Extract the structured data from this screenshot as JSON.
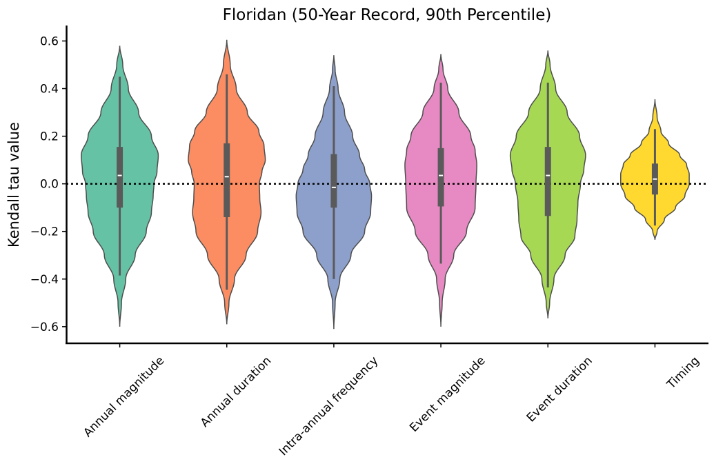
{
  "chart_data": {
    "type": "violin",
    "title": "Floridan (50-Year Record, 90th Percentile)",
    "xlabel": "",
    "ylabel": "Kendall tau value",
    "ylim": [
      -0.67,
      0.665
    ],
    "yticks": [
      -0.6,
      -0.4,
      -0.2,
      0.0,
      0.2,
      0.4,
      0.6
    ],
    "ytick_labels": [
      "−0.6",
      "−0.4",
      "−0.2",
      "0.0",
      "0.2",
      "0.4",
      "0.6"
    ],
    "reference_line": {
      "y": 0.0,
      "style": "dotted"
    },
    "grid": false,
    "categories": [
      "Annual magnitude",
      "Annual duration",
      "Intra-annual frequency",
      "Event magnitude",
      "Event duration",
      "Timing"
    ],
    "violins": [
      {
        "category": "Annual magnitude",
        "color": "#66c2a5",
        "min": -0.6,
        "max": 0.58,
        "whisker_low": -0.385,
        "whisker_high": 0.45,
        "q1": -0.1,
        "median": 0.035,
        "q3": 0.155,
        "density_y": [
          -0.6,
          -0.5,
          -0.4,
          -0.3,
          -0.2,
          -0.12,
          -0.05,
          0.0,
          0.05,
          0.12,
          0.2,
          0.3,
          0.4,
          0.5,
          0.58
        ],
        "density_w": [
          0.0,
          0.04,
          0.14,
          0.36,
          0.62,
          0.74,
          0.78,
          0.8,
          0.87,
          0.9,
          0.74,
          0.44,
          0.2,
          0.07,
          0.0
        ]
      },
      {
        "category": "Annual duration",
        "color": "#fc8d62",
        "min": -0.59,
        "max": 0.605,
        "whisker_low": -0.445,
        "whisker_high": 0.46,
        "q1": -0.14,
        "median": 0.03,
        "q3": 0.17,
        "density_y": [
          -0.59,
          -0.5,
          -0.4,
          -0.3,
          -0.2,
          -0.12,
          -0.06,
          0.0,
          0.05,
          0.1,
          0.16,
          0.22,
          0.3,
          0.4,
          0.5,
          0.605
        ],
        "density_w": [
          0.0,
          0.05,
          0.18,
          0.45,
          0.72,
          0.8,
          0.77,
          0.76,
          0.82,
          0.9,
          0.87,
          0.75,
          0.48,
          0.22,
          0.08,
          0.0
        ]
      },
      {
        "category": "Intra-annual frequency",
        "color": "#8da0cb",
        "min": -0.61,
        "max": 0.54,
        "whisker_low": -0.4,
        "whisker_high": 0.41,
        "q1": -0.1,
        "median": -0.015,
        "q3": 0.125,
        "density_y": [
          -0.61,
          -0.5,
          -0.4,
          -0.3,
          -0.2,
          -0.12,
          -0.05,
          0.0,
          0.06,
          0.12,
          0.2,
          0.3,
          0.4,
          0.48,
          0.54
        ],
        "density_w": [
          0.0,
          0.03,
          0.14,
          0.4,
          0.72,
          0.86,
          0.88,
          0.84,
          0.72,
          0.6,
          0.44,
          0.25,
          0.1,
          0.03,
          0.0
        ]
      },
      {
        "category": "Event magnitude",
        "color": "#e78ac3",
        "min": -0.6,
        "max": 0.545,
        "whisker_low": -0.335,
        "whisker_high": 0.425,
        "q1": -0.095,
        "median": 0.035,
        "q3": 0.15,
        "density_y": [
          -0.6,
          -0.5,
          -0.4,
          -0.3,
          -0.2,
          -0.1,
          0.0,
          0.08,
          0.14,
          0.2,
          0.3,
          0.4,
          0.48,
          0.545
        ],
        "density_w": [
          0.0,
          0.03,
          0.1,
          0.3,
          0.6,
          0.8,
          0.82,
          0.84,
          0.8,
          0.7,
          0.42,
          0.16,
          0.05,
          0.0
        ]
      },
      {
        "category": "Event duration",
        "color": "#a6d854",
        "min": -0.565,
        "max": 0.56,
        "whisker_low": -0.435,
        "whisker_high": 0.425,
        "q1": -0.135,
        "median": 0.035,
        "q3": 0.155,
        "density_y": [
          -0.565,
          -0.5,
          -0.4,
          -0.3,
          -0.22,
          -0.15,
          -0.08,
          0.0,
          0.06,
          0.12,
          0.2,
          0.3,
          0.4,
          0.5,
          0.56
        ],
        "density_w": [
          0.0,
          0.04,
          0.14,
          0.4,
          0.63,
          0.68,
          0.7,
          0.76,
          0.84,
          0.88,
          0.74,
          0.45,
          0.18,
          0.05,
          0.0
        ]
      },
      {
        "category": "Timing",
        "color": "#ffd92f",
        "min": -0.235,
        "max": 0.355,
        "whisker_low": -0.175,
        "whisker_high": 0.23,
        "q1": -0.045,
        "median": 0.02,
        "q3": 0.085,
        "density_y": [
          -0.235,
          -0.2,
          -0.15,
          -0.1,
          -0.05,
          0.0,
          0.04,
          0.08,
          0.12,
          0.17,
          0.22,
          0.28,
          0.355
        ],
        "density_w": [
          0.0,
          0.05,
          0.22,
          0.48,
          0.7,
          0.8,
          0.8,
          0.74,
          0.58,
          0.32,
          0.14,
          0.05,
          0.0
        ]
      }
    ]
  }
}
